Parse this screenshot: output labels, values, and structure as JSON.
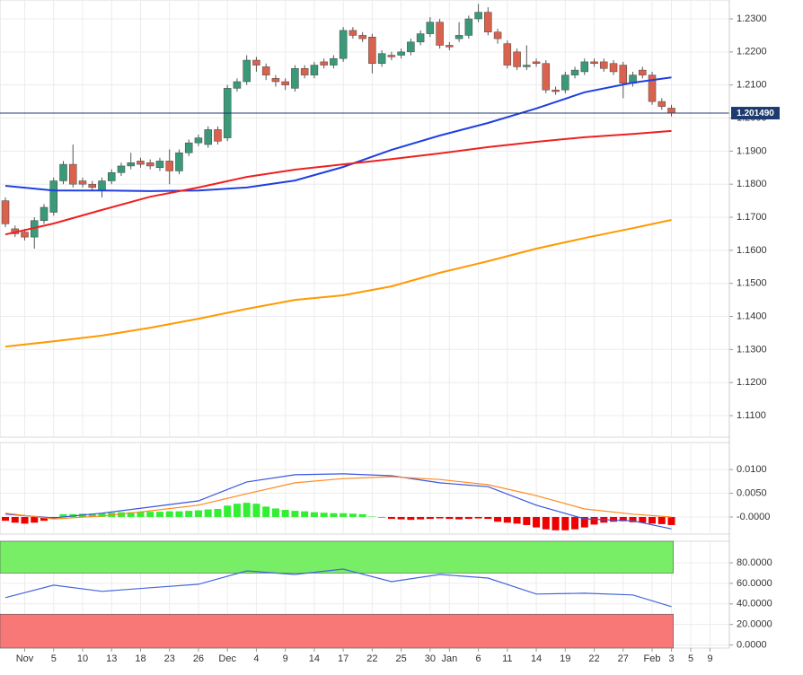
{
  "chart_data": [
    {
      "type": "candlestick",
      "open": [
        1.175,
        1.1665,
        1.1655,
        1.164,
        1.169,
        1.1715,
        1.181,
        1.186,
        1.181,
        1.18,
        1.178,
        1.181,
        1.1835,
        1.1855,
        1.187,
        1.1865,
        1.185,
        1.187,
        1.184,
        1.1895,
        1.1925,
        1.192,
        1.1965,
        1.194,
        1.209,
        1.211,
        1.2175,
        1.2155,
        1.212,
        1.211,
        1.209,
        1.215,
        1.213,
        1.217,
        1.216,
        1.218,
        1.2265,
        1.225,
        1.2245,
        1.2165,
        1.219,
        1.219,
        1.22,
        1.223,
        1.2255,
        1.229,
        1.222,
        1.224,
        1.225,
        1.23,
        1.232,
        1.226,
        1.2225,
        1.22,
        1.2155,
        1.217,
        1.2165,
        1.2085,
        1.2085,
        1.213,
        1.214,
        1.217,
        1.217,
        1.2165,
        1.216,
        1.2105,
        1.2145,
        1.213,
        1.205,
        1.203
      ],
      "high": [
        1.176,
        1.1675,
        1.1665,
        1.17,
        1.174,
        1.182,
        1.187,
        1.192,
        1.182,
        1.181,
        1.182,
        1.1845,
        1.1865,
        1.1895,
        1.188,
        1.1875,
        1.188,
        1.1905,
        1.1905,
        1.1935,
        1.195,
        1.1975,
        1.1975,
        1.21,
        1.212,
        1.219,
        1.2185,
        1.2165,
        1.213,
        1.212,
        1.216,
        1.216,
        1.217,
        1.218,
        1.219,
        1.2275,
        1.2275,
        1.226,
        1.2255,
        1.2205,
        1.22,
        1.221,
        1.224,
        1.2265,
        1.2305,
        1.23,
        1.223,
        1.229,
        1.231,
        1.2345,
        1.2335,
        1.227,
        1.2235,
        1.221,
        1.222,
        1.218,
        1.2175,
        1.2095,
        1.214,
        1.2155,
        1.218,
        1.218,
        1.218,
        1.2175,
        1.217,
        1.214,
        1.2155,
        1.214,
        1.206,
        1.204
      ],
      "low": [
        1.167,
        1.164,
        1.163,
        1.1605,
        1.168,
        1.1705,
        1.18,
        1.179,
        1.179,
        1.178,
        1.176,
        1.18,
        1.1825,
        1.1845,
        1.185,
        1.1845,
        1.184,
        1.18,
        1.183,
        1.1885,
        1.1915,
        1.191,
        1.192,
        1.193,
        1.208,
        1.21,
        1.214,
        1.2115,
        1.2095,
        1.2085,
        1.208,
        1.212,
        1.212,
        1.215,
        1.215,
        1.217,
        1.224,
        1.223,
        1.2135,
        1.2155,
        1.2175,
        1.218,
        1.219,
        1.222,
        1.2245,
        1.221,
        1.2205,
        1.223,
        1.224,
        1.229,
        1.225,
        1.2225,
        1.215,
        1.2145,
        1.2145,
        1.2155,
        1.2075,
        1.207,
        1.2075,
        1.212,
        1.213,
        1.2155,
        1.214,
        1.213,
        1.206,
        1.2095,
        1.212,
        1.204,
        1.2025,
        1.2005
      ],
      "close": [
        1.168,
        1.165,
        1.164,
        1.169,
        1.173,
        1.181,
        1.186,
        1.18,
        1.18,
        1.179,
        1.181,
        1.1835,
        1.1855,
        1.1865,
        1.186,
        1.1855,
        1.187,
        1.184,
        1.1895,
        1.1925,
        1.194,
        1.1965,
        1.193,
        1.209,
        1.211,
        1.2175,
        1.216,
        1.213,
        1.211,
        1.21,
        1.215,
        1.213,
        1.216,
        1.216,
        1.218,
        1.2265,
        1.225,
        1.224,
        1.2165,
        1.2195,
        1.2185,
        1.22,
        1.223,
        1.2255,
        1.229,
        1.222,
        1.2215,
        1.225,
        1.23,
        1.232,
        1.226,
        1.224,
        1.216,
        1.2155,
        1.216,
        1.2165,
        1.2085,
        1.208,
        1.213,
        1.2145,
        1.217,
        1.2165,
        1.215,
        1.214,
        1.2105,
        1.213,
        1.213,
        1.205,
        1.2035,
        1.2015
      ],
      "up_color": "#3a9a78",
      "down_color": "#d9624f",
      "lines": [
        {
          "color": "#1f3fe0",
          "x": [
            0,
            5,
            10,
            15,
            20,
            25,
            30,
            35,
            40,
            45,
            50,
            55,
            60,
            65,
            69
          ],
          "values": [
            1.1795,
            1.1781,
            1.1781,
            1.1779,
            1.1781,
            1.179,
            1.1811,
            1.1852,
            1.1904,
            1.1947,
            1.1985,
            1.2029,
            1.2078,
            1.2107,
            1.2123
          ]
        },
        {
          "color": "#ee2020",
          "x": [
            0,
            5,
            10,
            15,
            20,
            25,
            30,
            35,
            40,
            45,
            50,
            55,
            60,
            65,
            69
          ],
          "values": [
            1.1648,
            1.1681,
            1.1722,
            1.1762,
            1.179,
            1.1822,
            1.1844,
            1.186,
            1.1876,
            1.1893,
            1.1912,
            1.1928,
            1.1942,
            1.1952,
            1.1961
          ]
        },
        {
          "color": "#ff9900",
          "x": [
            0,
            5,
            10,
            15,
            20,
            25,
            30,
            35,
            40,
            45,
            50,
            55,
            60,
            65,
            69
          ],
          "values": [
            1.1309,
            1.1325,
            1.1342,
            1.1366,
            1.1393,
            1.1423,
            1.145,
            1.1464,
            1.1491,
            1.1532,
            1.1567,
            1.1605,
            1.1637,
            1.1667,
            1.1692
          ]
        }
      ],
      "last_price": {
        "value": 1.20149,
        "label": "1.201490"
      },
      "ylim": [
        1.1035,
        1.2357
      ],
      "yticks": [
        {
          "value": 1.11,
          "label": "1.1100"
        },
        {
          "value": 1.12,
          "label": "1.1200"
        },
        {
          "value": 1.13,
          "label": "1.1300"
        },
        {
          "value": 1.14,
          "label": "1.1400"
        },
        {
          "value": 1.15,
          "label": "1.1500"
        },
        {
          "value": 1.16,
          "label": "1.1600"
        },
        {
          "value": 1.17,
          "label": "1.1700"
        },
        {
          "value": 1.18,
          "label": "1.1800"
        },
        {
          "value": 1.19,
          "label": "1.1900"
        },
        {
          "value": 1.2,
          "label": "1.2000"
        },
        {
          "value": 1.21,
          "label": "1.2100"
        },
        {
          "value": 1.22,
          "label": "1.2200"
        },
        {
          "value": 1.23,
          "label": "1.2300"
        }
      ],
      "grid": true
    },
    {
      "type": "bar",
      "values": [
        -0.0008,
        -0.0012,
        -0.0014,
        -0.0012,
        -0.0008,
        -0.0003,
        0.0006,
        0.0006,
        0.0007,
        0.0007,
        0.0008,
        0.0009,
        0.001,
        0.001,
        0.0011,
        0.0011,
        0.0011,
        0.0012,
        0.0012,
        0.0013,
        0.0014,
        0.0016,
        0.0017,
        0.0024,
        0.0028,
        0.003,
        0.0028,
        0.0022,
        0.0018,
        0.0015,
        0.0013,
        0.0012,
        0.001,
        0.0009,
        0.0008,
        0.0008,
        0.0007,
        0.0006,
        0.0001,
        -0.0001,
        -0.0004,
        -0.0005,
        -0.0006,
        -0.0005,
        -0.0004,
        -0.0003,
        -0.0004,
        -0.0005,
        -0.0004,
        -0.0003,
        -0.0004,
        -0.001,
        -0.0012,
        -0.0014,
        -0.0017,
        -0.0022,
        -0.0026,
        -0.0028,
        -0.0028,
        -0.0026,
        -0.0022,
        -0.0016,
        -0.0012,
        -0.001,
        -0.0009,
        -0.0011,
        -0.0012,
        -0.0014,
        -0.0015,
        -0.0017
      ],
      "up_color": "#33ee33",
      "down_color": "#ee0000",
      "lines": [
        {
          "color": "#3a55e0",
          "x": [
            0,
            5,
            10,
            15,
            20,
            25,
            30,
            35,
            40,
            45,
            50,
            55,
            60,
            65,
            69
          ],
          "values": [
            0.0006,
            -0.0002,
            0.0008,
            0.0021,
            0.0034,
            0.0074,
            0.0089,
            0.0091,
            0.0087,
            0.0072,
            0.0064,
            0.0025,
            -0.0004,
            -0.0008,
            -0.0025
          ]
        },
        {
          "color": "#ff8a20",
          "x": [
            0,
            5,
            10,
            15,
            20,
            25,
            30,
            35,
            40,
            45,
            50,
            55,
            60,
            65,
            69
          ],
          "values": [
            0.0008,
            -0.0004,
            0.0002,
            0.0013,
            0.0025,
            0.0049,
            0.0072,
            0.0081,
            0.0085,
            0.0079,
            0.0068,
            0.0045,
            0.0017,
            0.0006,
            0.0
          ]
        }
      ],
      "ylim": [
        -0.0036,
        0.0157
      ],
      "yticks": [
        {
          "value": 0,
          "label": "-0.0000"
        },
        {
          "value": 0.005,
          "label": "0.0050"
        },
        {
          "value": 0.01,
          "label": "0.0100"
        }
      ],
      "grid": true
    },
    {
      "type": "line",
      "bands": [
        {
          "from": 70,
          "to": 101,
          "color": "#77ee66"
        },
        {
          "from": -3,
          "to": 30,
          "color": "#f87878"
        }
      ],
      "lines": [
        {
          "color": "#4466dd",
          "x": [
            0,
            5,
            10,
            15,
            20,
            25,
            30,
            35,
            40,
            45,
            50,
            55,
            60,
            65,
            69
          ],
          "values": [
            46.1,
            58.3,
            52.2,
            55.7,
            59.1,
            72.2,
            68.7,
            73.9,
            61.7,
            68.7,
            65.2,
            49.6,
            50.4,
            48.7,
            37.4
          ]
        }
      ],
      "ylim": [
        -3,
        101
      ],
      "yticks": [
        {
          "value": 0,
          "label": "0.0000"
        },
        {
          "value": 20,
          "label": "20.0000"
        },
        {
          "value": 40,
          "label": "40.0000"
        },
        {
          "value": 60,
          "label": "60.0000"
        },
        {
          "value": 80,
          "label": "80.0000"
        }
      ],
      "grid": true,
      "xlim": [
        -0.56,
        75
      ],
      "xticks": [
        {
          "value": 2,
          "label": "Nov"
        },
        {
          "value": 5,
          "label": "5"
        },
        {
          "value": 8,
          "label": "10"
        },
        {
          "value": 11,
          "label": "13"
        },
        {
          "value": 14,
          "label": "18"
        },
        {
          "value": 17,
          "label": "23"
        },
        {
          "value": 20,
          "label": "26"
        },
        {
          "value": 23,
          "label": "Dec"
        },
        {
          "value": 26,
          "label": "4"
        },
        {
          "value": 29,
          "label": "9"
        },
        {
          "value": 32,
          "label": "14"
        },
        {
          "value": 35,
          "label": "17"
        },
        {
          "value": 38,
          "label": "22"
        },
        {
          "value": 41,
          "label": "25"
        },
        {
          "value": 44,
          "label": "30"
        },
        {
          "value": 46,
          "label": "Jan"
        },
        {
          "value": 49,
          "label": "6"
        },
        {
          "value": 52,
          "label": "11"
        },
        {
          "value": 55,
          "label": "14"
        },
        {
          "value": 58,
          "label": "19"
        },
        {
          "value": 61,
          "label": "22"
        },
        {
          "value": 64,
          "label": "27"
        },
        {
          "value": 67,
          "label": "Feb"
        },
        {
          "value": 69,
          "label": "3"
        },
        {
          "value": 71,
          "label": "5"
        },
        {
          "value": 73,
          "label": "9"
        }
      ]
    }
  ]
}
